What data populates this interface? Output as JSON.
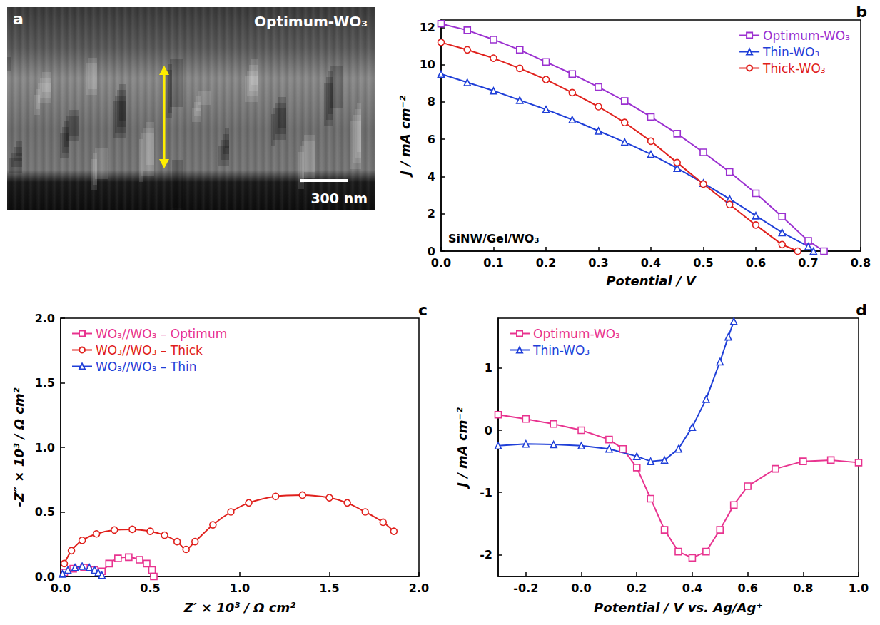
{
  "chart_data": [
    {
      "type": "image",
      "panel_label": "a",
      "title": "Optimum-WO₃",
      "scale_bar": "300 nm"
    },
    {
      "type": "line",
      "panel_label": "b",
      "x_label": "Potential / V",
      "y_label": "J / mA cm⁻²",
      "annotation": "SiNW/Gel/WO₃",
      "xlim": [
        0,
        0.8
      ],
      "xticks": [
        {
          "value": 0,
          "label": "0.0"
        },
        0.1,
        0.2,
        0.3,
        0.4,
        0.5,
        0.6,
        0.7,
        0.8
      ],
      "ylim": [
        0,
        12.4
      ],
      "yticks": [
        0,
        2,
        4,
        6,
        8,
        10,
        12
      ],
      "grid": false,
      "legend": "upper right",
      "series": [
        {
          "name": "Optimum-WO₃",
          "color": "#9b30d0",
          "marker": "square",
          "x": [
            0,
            0.05,
            0.1,
            0.15,
            0.2,
            0.25,
            0.3,
            0.35,
            0.4,
            0.45,
            0.5,
            0.55,
            0.6,
            0.65,
            0.7,
            0.73
          ],
          "values": [
            12.2,
            11.85,
            11.35,
            10.8,
            10.15,
            9.5,
            8.8,
            8.05,
            7.2,
            6.3,
            5.3,
            4.25,
            3.1,
            1.85,
            0.55,
            0
          ]
        },
        {
          "name": "Thin-WO₃",
          "color": "#1f3fd8",
          "marker": "triangle",
          "x": [
            0,
            0.05,
            0.1,
            0.15,
            0.2,
            0.25,
            0.3,
            0.35,
            0.4,
            0.45,
            0.5,
            0.55,
            0.6,
            0.65,
            0.7,
            0.71
          ],
          "values": [
            9.5,
            9.05,
            8.6,
            8.1,
            7.6,
            7.05,
            6.45,
            5.85,
            5.2,
            4.45,
            3.65,
            2.8,
            1.9,
            1.0,
            0.25,
            0
          ]
        },
        {
          "name": "Thick-WO₃",
          "color": "#e0201c",
          "marker": "circle",
          "x": [
            0,
            0.05,
            0.1,
            0.15,
            0.2,
            0.25,
            0.3,
            0.35,
            0.4,
            0.45,
            0.5,
            0.55,
            0.6,
            0.65,
            0.68
          ],
          "values": [
            11.2,
            10.8,
            10.35,
            9.8,
            9.2,
            8.5,
            7.75,
            6.9,
            5.9,
            4.75,
            3.6,
            2.5,
            1.4,
            0.35,
            0
          ]
        }
      ]
    },
    {
      "type": "line",
      "panel_label": "c",
      "x_label": "Z′ × 10³ / Ω cm²",
      "y_label": "-Z″ × 10³ / Ω cm²",
      "xlim": [
        0,
        2
      ],
      "xticks": [
        {
          "value": 0,
          "label": "0.0"
        },
        0.5,
        {
          "value": 1,
          "label": "1.0"
        },
        1.5,
        {
          "value": 2,
          "label": "2.0"
        }
      ],
      "ylim": [
        0,
        2
      ],
      "yticks": [
        {
          "value": 0,
          "label": "0.0"
        },
        0.5,
        {
          "value": 1,
          "label": "1.0"
        },
        1.5,
        {
          "value": 2,
          "label": "2.0"
        }
      ],
      "grid": false,
      "legend": "upper left",
      "series": [
        {
          "name": "WO₃//WO₃ – Optimum",
          "color": "#e8338f",
          "marker": "square",
          "x": [
            0.02,
            0.07,
            0.13,
            0.19,
            0.23,
            0.27,
            0.32,
            0.38,
            0.44,
            0.48,
            0.51,
            0.52
          ],
          "values": [
            0.03,
            0.06,
            0.07,
            0.05,
            0.04,
            0.1,
            0.14,
            0.15,
            0.13,
            0.1,
            0.05,
            0
          ]
        },
        {
          "name": "WO₃//WO₃ – Thick",
          "color": "#e0201c",
          "marker": "circle",
          "x": [
            0.02,
            0.06,
            0.12,
            0.2,
            0.3,
            0.4,
            0.5,
            0.58,
            0.65,
            0.7,
            0.75,
            0.85,
            0.95,
            1.05,
            1.2,
            1.35,
            1.5,
            1.6,
            1.7,
            1.8,
            1.86
          ],
          "values": [
            0.1,
            0.2,
            0.28,
            0.33,
            0.36,
            0.365,
            0.35,
            0.32,
            0.27,
            0.21,
            0.27,
            0.4,
            0.5,
            0.57,
            0.62,
            0.63,
            0.61,
            0.57,
            0.5,
            0.42,
            0.35
          ]
        },
        {
          "name": "WO₃//WO₃ – Thin",
          "color": "#1f3fd8",
          "marker": "triangle",
          "x": [
            0.01,
            0.04,
            0.08,
            0.12,
            0.16,
            0.19,
            0.21,
            0.23
          ],
          "values": [
            0.02,
            0.05,
            0.07,
            0.08,
            0.07,
            0.05,
            0.03,
            0.01
          ]
        }
      ]
    },
    {
      "type": "line",
      "panel_label": "d",
      "x_label": "Potential / V vs. Ag/Ag⁺",
      "y_label": "J / mA cm⁻²",
      "xlim": [
        -0.3,
        1
      ],
      "xticks": [
        -0.2,
        {
          "value": 0,
          "label": "0.0"
        },
        0.2,
        0.4,
        0.6,
        0.8,
        {
          "value": 1,
          "label": "1.0"
        }
      ],
      "ylim": [
        -2.35,
        1.8
      ],
      "yticks": [
        -2,
        -1,
        0,
        1
      ],
      "grid": false,
      "legend": "upper left",
      "series": [
        {
          "name": "Optimum-WO₃",
          "color": "#e8338f",
          "marker": "square",
          "x": [
            -0.3,
            -0.2,
            -0.1,
            0,
            0.1,
            0.15,
            0.2,
            0.25,
            0.3,
            0.35,
            0.4,
            0.45,
            0.5,
            0.55,
            0.6,
            0.7,
            0.8,
            0.9,
            1.0
          ],
          "values": [
            0.25,
            0.18,
            0.1,
            0,
            -0.15,
            -0.3,
            -0.6,
            -1.1,
            -1.6,
            -1.95,
            -2.05,
            -1.95,
            -1.6,
            -1.2,
            -0.9,
            -0.62,
            -0.5,
            -0.48,
            -0.52
          ]
        },
        {
          "name": "Thin-WO₃",
          "color": "#1f3fd8",
          "marker": "triangle",
          "x": [
            -0.3,
            -0.2,
            -0.1,
            0,
            0.1,
            0.2,
            0.25,
            0.3,
            0.35,
            0.4,
            0.45,
            0.5,
            0.53,
            0.55
          ],
          "values": [
            -0.25,
            -0.22,
            -0.23,
            -0.25,
            -0.3,
            -0.42,
            -0.5,
            -0.48,
            -0.3,
            0.05,
            0.5,
            1.1,
            1.5,
            1.75
          ]
        }
      ]
    }
  ]
}
